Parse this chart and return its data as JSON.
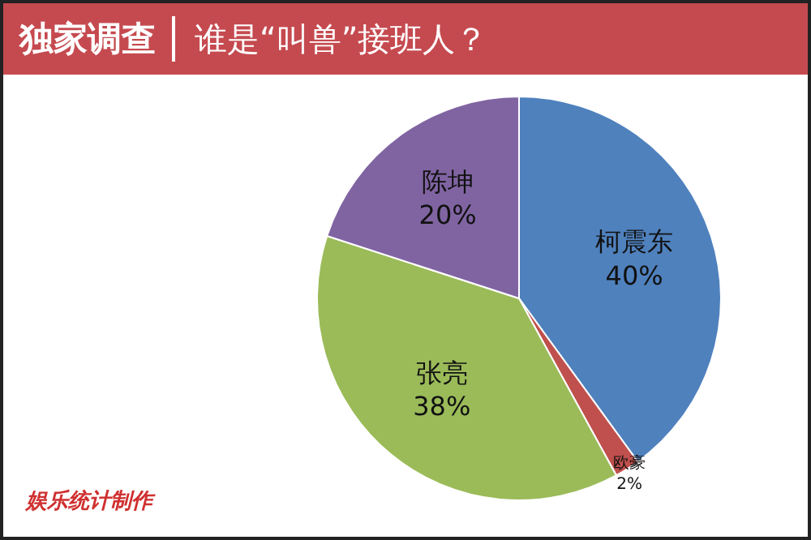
{
  "chart_data": {
    "type": "pie",
    "subtitle": "独家调查",
    "title": "谁是“叫兽”接班人？",
    "categories": [
      "柯震东",
      "欧豪",
      "张亮",
      "陈坤"
    ],
    "values": [
      40,
      2,
      38,
      20
    ],
    "colors": [
      "#4f81bd",
      "#c0504d",
      "#9bbb59",
      "#8064a2"
    ],
    "value_labels": [
      "40%",
      "2%",
      "38%",
      "20%"
    ],
    "legend": false,
    "annotations": [
      "娱乐统计制作"
    ]
  }
}
